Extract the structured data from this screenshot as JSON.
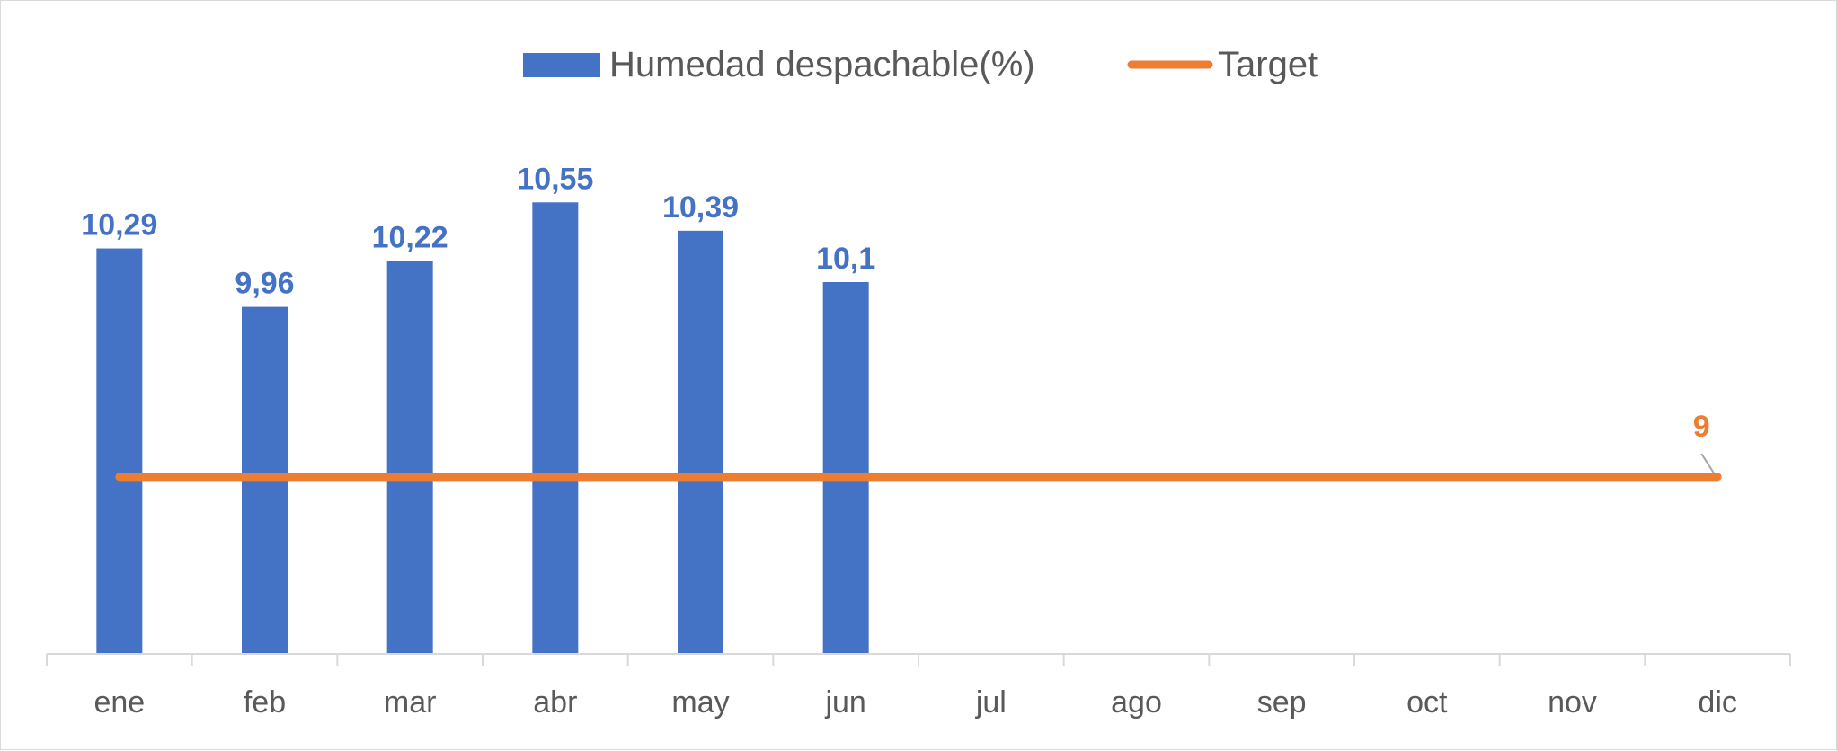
{
  "chart_data": {
    "type": "bar",
    "categories": [
      "ene",
      "feb",
      "mar",
      "abr",
      "may",
      "jun",
      "jul",
      "ago",
      "sep",
      "oct",
      "nov",
      "dic"
    ],
    "series": [
      {
        "name": "Humedad despachable(%)",
        "kind": "bar",
        "color": "#4472C4",
        "values": [
          10.29,
          9.96,
          10.22,
          10.55,
          10.39,
          10.1,
          null,
          null,
          null,
          null,
          null,
          null
        ],
        "labels": [
          "10,29",
          "9,96",
          "10,22",
          "10,55",
          "10,39",
          "10,1",
          "",
          "",
          "",
          "",
          "",
          ""
        ]
      },
      {
        "name": "Target",
        "kind": "line",
        "color": "#ED7D31",
        "values": [
          9,
          9,
          9,
          9,
          9,
          9,
          9,
          9,
          9,
          9,
          9,
          9
        ],
        "labels": [
          "",
          "",
          "",
          "",
          "",
          "",
          "",
          "",
          "",
          "",
          "",
          "9"
        ]
      }
    ],
    "legend_position": "top-center",
    "ylim": [
      8,
      10.8
    ],
    "grid": false,
    "title": "",
    "xlabel": "",
    "ylabel": ""
  }
}
